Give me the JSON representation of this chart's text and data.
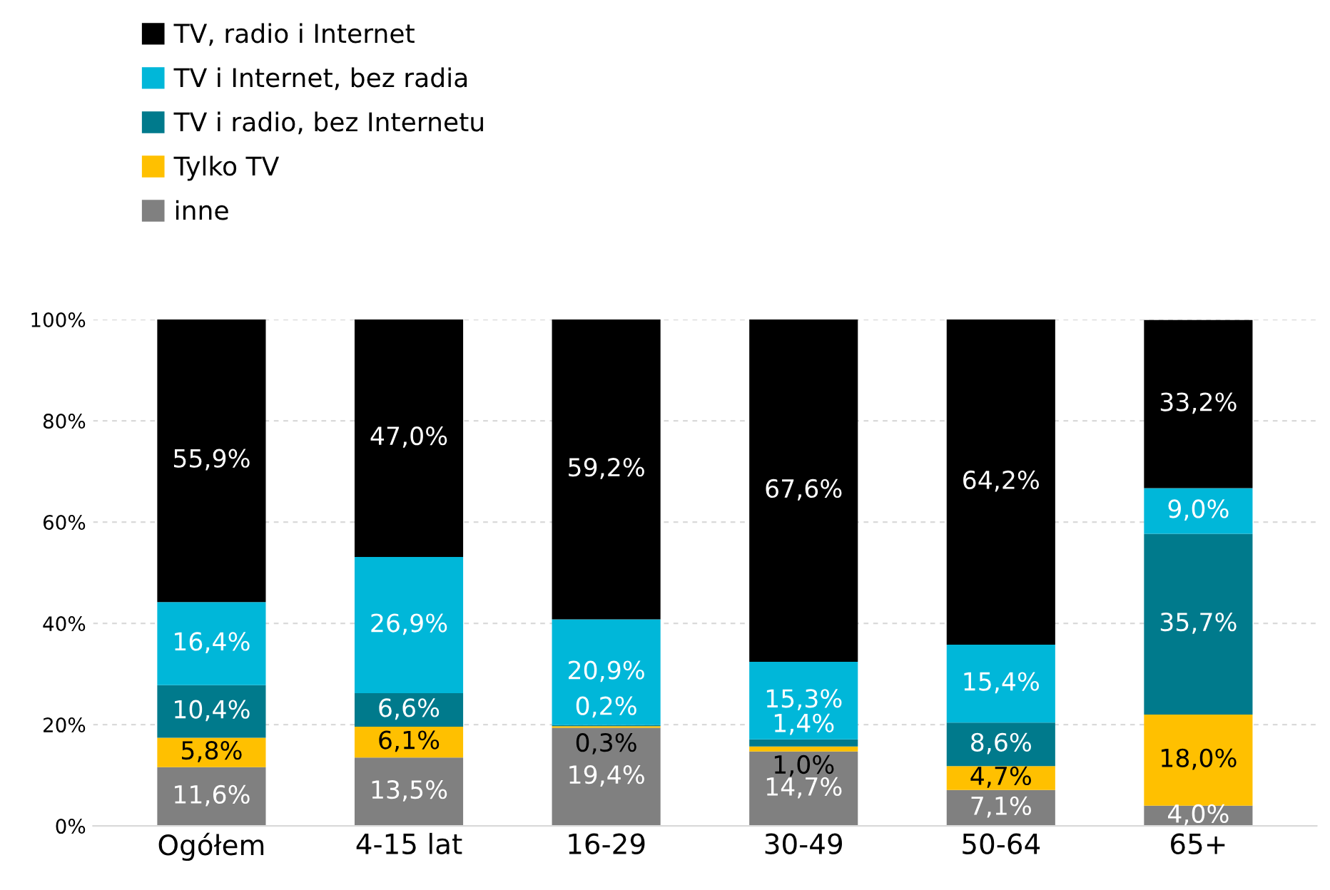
{
  "chart_data": {
    "type": "bar",
    "stacked": true,
    "categories": [
      "Ogółem",
      "4-15 lat",
      "16-29",
      "30-49",
      "50-64",
      "65+"
    ],
    "series": [
      {
        "name": "inne",
        "color": "#808080",
        "values": [
          11.6,
          13.5,
          19.4,
          14.7,
          7.1,
          4.0
        ],
        "value_labels": [
          "11,6%",
          "13,5%",
          "19,4%",
          "14,7%",
          "7,1%",
          "4,0%"
        ]
      },
      {
        "name": "Tylko TV",
        "color": "#ffc000",
        "values": [
          5.8,
          6.1,
          0.3,
          1.0,
          4.7,
          18.0
        ],
        "value_labels": [
          "5,8%",
          "6,1%",
          "0,3%",
          "1,0%",
          "4,7%",
          "18,0%"
        ]
      },
      {
        "name": "TV i radio, bez Internetu",
        "color": "#007a8c",
        "values": [
          10.4,
          6.6,
          0.2,
          1.4,
          8.6,
          35.7
        ],
        "value_labels": [
          "10,4%",
          "6,6%",
          "0,2%",
          "1,4%",
          "8,6%",
          "35,7%"
        ]
      },
      {
        "name": "TV i Internet, bez radia",
        "color": "#00b7d9",
        "values": [
          16.4,
          26.9,
          20.9,
          15.3,
          15.4,
          9.0
        ],
        "value_labels": [
          "16,4%",
          "26,9%",
          "20,9%",
          "15,3%",
          "15,4%",
          "9,0%"
        ]
      },
      {
        "name": "TV, radio i Internet",
        "color": "#000000",
        "values": [
          55.9,
          47.0,
          59.2,
          67.6,
          64.2,
          33.2
        ],
        "value_labels": [
          "55,9%",
          "47,0%",
          "59,2%",
          "67,6%",
          "64,2%",
          "33,2%"
        ]
      }
    ],
    "ylim": [
      0,
      100
    ],
    "yticks": [
      {
        "value": 0,
        "label": "0%"
      },
      {
        "value": 20,
        "label": "20%"
      },
      {
        "value": 40,
        "label": "40%"
      },
      {
        "value": 60,
        "label": "60%"
      },
      {
        "value": 80,
        "label": "80%"
      },
      {
        "value": 100,
        "label": "100%"
      }
    ],
    "grid": "y",
    "legend": "top left"
  }
}
